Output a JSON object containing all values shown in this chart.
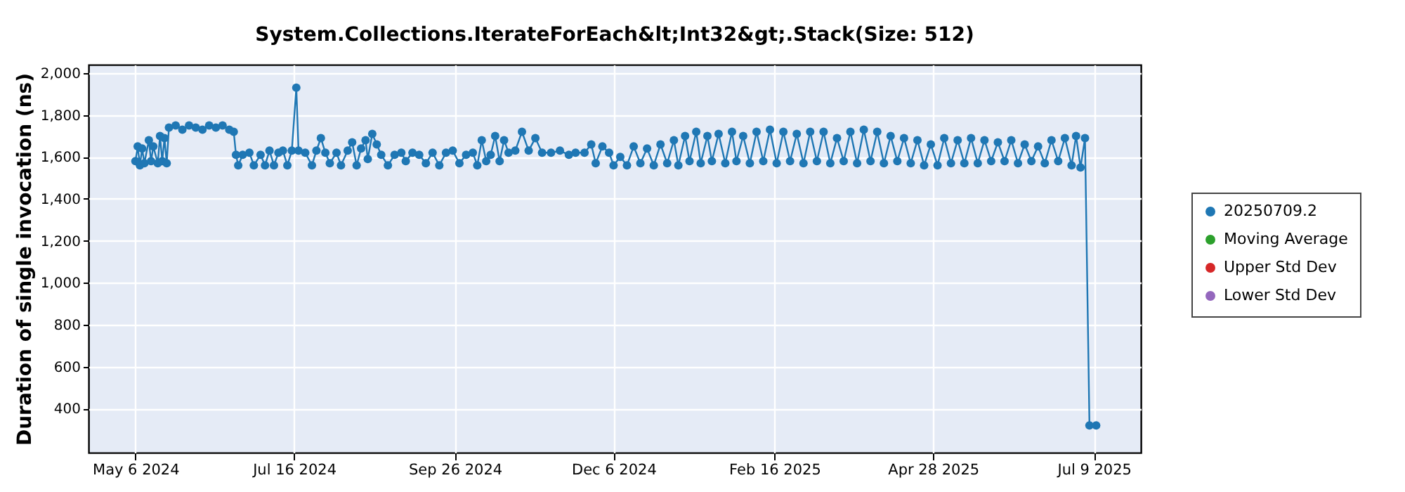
{
  "chart_data": {
    "type": "line",
    "title": "System.Collections.IterateForEach&lt;Int32&gt;.Stack(Size: 512)",
    "ylabel": "Duration of single invocation (ns)",
    "xlim": [
      "2024-04-15",
      "2025-07-30"
    ],
    "xticks": [
      {
        "value": "2024-05-06",
        "label": "May 6 2024"
      },
      {
        "value": "2024-07-16",
        "label": "Jul 16 2024"
      },
      {
        "value": "2024-09-26",
        "label": "Sep 26 2024"
      },
      {
        "value": "2024-12-06",
        "label": "Dec 6 2024"
      },
      {
        "value": "2025-02-16",
        "label": "Feb 16 2025"
      },
      {
        "value": "2025-04-28",
        "label": "Apr 28 2025"
      },
      {
        "value": "2025-07-09",
        "label": "Jul 9 2025"
      }
    ],
    "ylim": [
      190,
      2040
    ],
    "yticks": [
      400,
      600,
      800,
      {
        "value": 1000,
        "label": "1,000"
      },
      {
        "value": 1200,
        "label": "1,200"
      },
      {
        "value": 1400,
        "label": "1,400"
      },
      {
        "value": 1600,
        "label": "1,600"
      },
      {
        "value": 1800,
        "label": "1,800"
      },
      {
        "value": 2000,
        "label": "2,000"
      }
    ],
    "grid": true,
    "legend": "right",
    "marker": "circle",
    "line_style": "solid",
    "series": [
      {
        "name": "20250709.2",
        "color": "#1f77b4",
        "x": [
          "2024-05-06",
          "2024-05-07",
          "2024-05-08",
          "2024-05-09",
          "2024-05-10",
          "2024-05-12",
          "2024-05-13",
          "2024-05-14",
          "2024-05-16",
          "2024-05-17",
          "2024-05-18",
          "2024-05-19",
          "2024-05-20",
          "2024-05-21",
          "2024-05-24",
          "2024-05-27",
          "2024-05-30",
          "2024-06-02",
          "2024-06-05",
          "2024-06-08",
          "2024-06-11",
          "2024-06-14",
          "2024-06-17",
          "2024-06-19",
          "2024-06-20",
          "2024-06-21",
          "2024-06-23",
          "2024-06-26",
          "2024-06-28",
          "2024-07-01",
          "2024-07-03",
          "2024-07-05",
          "2024-07-07",
          "2024-07-09",
          "2024-07-11",
          "2024-07-13",
          "2024-07-15",
          "2024-07-17",
          "2024-07-18",
          "2024-07-21",
          "2024-07-24",
          "2024-07-26",
          "2024-07-28",
          "2024-07-30",
          "2024-08-01",
          "2024-08-04",
          "2024-08-06",
          "2024-08-09",
          "2024-08-11",
          "2024-08-13",
          "2024-08-15",
          "2024-08-17",
          "2024-08-18",
          "2024-08-20",
          "2024-08-22",
          "2024-08-24",
          "2024-08-27",
          "2024-08-30",
          "2024-09-02",
          "2024-09-04",
          "2024-09-07",
          "2024-09-10",
          "2024-09-13",
          "2024-09-16",
          "2024-09-19",
          "2024-09-22",
          "2024-09-25",
          "2024-09-28",
          "2024-10-01",
          "2024-10-04",
          "2024-10-06",
          "2024-10-08",
          "2024-10-10",
          "2024-10-12",
          "2024-10-14",
          "2024-10-16",
          "2024-10-18",
          "2024-10-20",
          "2024-10-23",
          "2024-10-26",
          "2024-10-29",
          "2024-11-01",
          "2024-11-04",
          "2024-11-08",
          "2024-11-12",
          "2024-11-16",
          "2024-11-19",
          "2024-11-23",
          "2024-11-26",
          "2024-11-28",
          "2024-12-01",
          "2024-12-04",
          "2024-12-06",
          "2024-12-09",
          "2024-12-12",
          "2024-12-15",
          "2024-12-18",
          "2024-12-21",
          "2024-12-24",
          "2024-12-27",
          "2024-12-30",
          "2025-01-02",
          "2025-01-04",
          "2025-01-07",
          "2025-01-09",
          "2025-01-12",
          "2025-01-14",
          "2025-01-17",
          "2025-01-19",
          "2025-01-22",
          "2025-01-25",
          "2025-01-28",
          "2025-01-30",
          "2025-02-02",
          "2025-02-05",
          "2025-02-08",
          "2025-02-11",
          "2025-02-14",
          "2025-02-17",
          "2025-02-20",
          "2025-02-23",
          "2025-02-26",
          "2025-03-01",
          "2025-03-04",
          "2025-03-07",
          "2025-03-10",
          "2025-03-13",
          "2025-03-16",
          "2025-03-19",
          "2025-03-22",
          "2025-03-25",
          "2025-03-28",
          "2025-03-31",
          "2025-04-03",
          "2025-04-06",
          "2025-04-09",
          "2025-04-12",
          "2025-04-15",
          "2025-04-18",
          "2025-04-21",
          "2025-04-24",
          "2025-04-27",
          "2025-04-30",
          "2025-05-03",
          "2025-05-06",
          "2025-05-09",
          "2025-05-12",
          "2025-05-15",
          "2025-05-18",
          "2025-05-21",
          "2025-05-24",
          "2025-05-27",
          "2025-05-30",
          "2025-06-02",
          "2025-06-05",
          "2025-06-08",
          "2025-06-11",
          "2025-06-14",
          "2025-06-17",
          "2025-06-20",
          "2025-06-23",
          "2025-06-26",
          "2025-06-29",
          "2025-07-01",
          "2025-07-03",
          "2025-07-05",
          "2025-07-07",
          "2025-07-10"
        ],
        "values": [
          1580,
          1650,
          1560,
          1640,
          1570,
          1680,
          1580,
          1650,
          1570,
          1700,
          1580,
          1690,
          1570,
          1740,
          1750,
          1730,
          1750,
          1740,
          1730,
          1750,
          1740,
          1750,
          1730,
          1720,
          1610,
          1560,
          1610,
          1620,
          1560,
          1610,
          1560,
          1630,
          1560,
          1620,
          1630,
          1560,
          1630,
          1930,
          1630,
          1620,
          1560,
          1630,
          1690,
          1620,
          1570,
          1620,
          1560,
          1630,
          1670,
          1560,
          1640,
          1680,
          1590,
          1710,
          1660,
          1610,
          1560,
          1610,
          1620,
          1580,
          1620,
          1610,
          1570,
          1620,
          1560,
          1620,
          1630,
          1570,
          1610,
          1620,
          1560,
          1680,
          1580,
          1610,
          1700,
          1580,
          1680,
          1620,
          1630,
          1720,
          1630,
          1690,
          1620,
          1620,
          1630,
          1610,
          1620,
          1620,
          1660,
          1570,
          1650,
          1620,
          1560,
          1600,
          1560,
          1650,
          1570,
          1640,
          1560,
          1660,
          1570,
          1680,
          1560,
          1700,
          1580,
          1720,
          1570,
          1700,
          1580,
          1710,
          1570,
          1720,
          1580,
          1700,
          1570,
          1720,
          1580,
          1730,
          1570,
          1720,
          1580,
          1710,
          1570,
          1720,
          1580,
          1720,
          1570,
          1690,
          1580,
          1720,
          1570,
          1730,
          1580,
          1720,
          1570,
          1700,
          1580,
          1690,
          1570,
          1680,
          1560,
          1660,
          1560,
          1690,
          1570,
          1680,
          1570,
          1690,
          1570,
          1680,
          1580,
          1670,
          1580,
          1680,
          1570,
          1660,
          1580,
          1650,
          1570,
          1680,
          1580,
          1690,
          1560,
          1700,
          1550,
          1690,
          320,
          320
        ]
      },
      {
        "name": "Moving Average",
        "color": "#2ca02c"
      },
      {
        "name": "Upper Std Dev",
        "color": "#d62728"
      },
      {
        "name": "Lower Std Dev",
        "color": "#9467bd"
      }
    ]
  }
}
